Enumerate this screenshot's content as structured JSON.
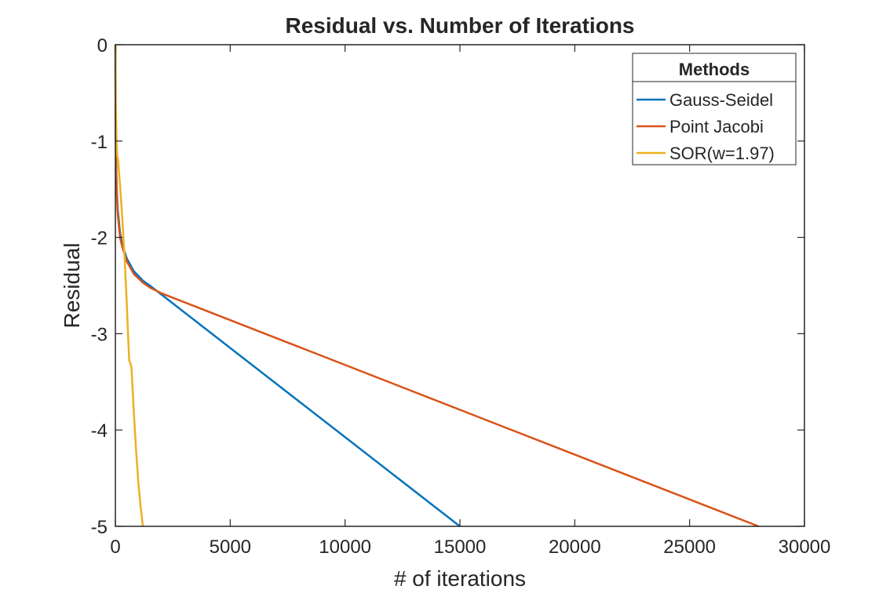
{
  "chart_data": {
    "type": "line",
    "title": "Residual vs. Number of Iterations",
    "xlabel": "# of iterations",
    "ylabel": "Residual",
    "xlim": [
      0,
      30000
    ],
    "ylim": [
      -5,
      0
    ],
    "xticks": [
      0,
      5000,
      10000,
      15000,
      20000,
      25000,
      30000
    ],
    "yticks": [
      0,
      -1,
      -2,
      -3,
      -4,
      -5
    ],
    "grid": false,
    "legend": {
      "title": "Methods",
      "placement": "top-right"
    },
    "series": [
      {
        "name": "Gauss-Seidel",
        "color": "#0072BD",
        "x": [
          0,
          10,
          30,
          60,
          100,
          200,
          300,
          500,
          800,
          1200,
          1500,
          15000
        ],
        "y": [
          0,
          -0.7,
          -1.2,
          -1.5,
          -1.7,
          -1.95,
          -2.08,
          -2.22,
          -2.35,
          -2.45,
          -2.5,
          -5.0
        ]
      },
      {
        "name": "Point Jacobi",
        "color": "#D95319",
        "x": [
          0,
          10,
          30,
          60,
          100,
          200,
          300,
          500,
          800,
          1200,
          1500,
          2000,
          28000
        ],
        "y": [
          0,
          -0.75,
          -1.25,
          -1.55,
          -1.75,
          -2.0,
          -2.1,
          -2.25,
          -2.38,
          -2.47,
          -2.52,
          -2.58,
          -5.0
        ]
      },
      {
        "name": "SOR(w=1.97)",
        "color": "#EDB120",
        "x": [
          0,
          20,
          50,
          80,
          120,
          150,
          200,
          300,
          400,
          500,
          550,
          600,
          650,
          700,
          800,
          900,
          1000,
          1100,
          1200
        ],
        "y": [
          0,
          -0.6,
          -1.0,
          -1.15,
          -1.2,
          -1.3,
          -1.45,
          -1.8,
          -2.2,
          -2.7,
          -3.0,
          -3.28,
          -3.3,
          -3.35,
          -3.8,
          -4.2,
          -4.55,
          -4.8,
          -5.0
        ]
      }
    ]
  }
}
